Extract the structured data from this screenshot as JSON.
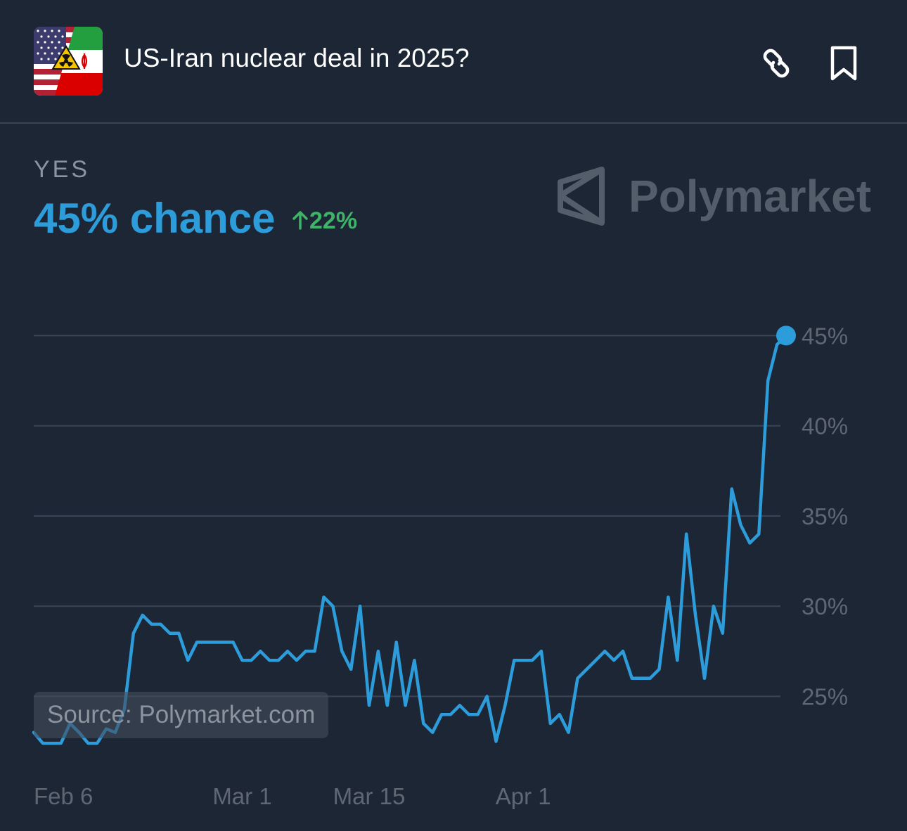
{
  "header": {
    "title": "US-Iran nuclear deal in 2025?",
    "icon": "us-iran-flag-radiation-icon",
    "actions": [
      "link-icon",
      "bookmark-icon"
    ]
  },
  "outcome": {
    "label": "YES",
    "chance": "45% chance",
    "change": "22%",
    "change_direction": "up"
  },
  "brand": "Polymarket",
  "source": "Source: Polymarket.com",
  "colors": {
    "background": "#1d2634",
    "line": "#2d9cdb",
    "positive_change": "#3db468",
    "grid": "#3a4556",
    "muted_text": "#8c949f"
  },
  "chart_data": {
    "type": "line",
    "series": [
      {
        "values": [
          {
            "x": "2025-02-06",
            "y": 23.0
          },
          {
            "x": "2025-02-07",
            "y": 22.4
          },
          {
            "x": "2025-02-08",
            "y": 22.4
          },
          {
            "x": "2025-02-09",
            "y": 22.4
          },
          {
            "x": "2025-02-10",
            "y": 23.5
          },
          {
            "x": "2025-02-11",
            "y": 23.0
          },
          {
            "x": "2025-02-12",
            "y": 22.4
          },
          {
            "x": "2025-02-13",
            "y": 22.4
          },
          {
            "x": "2025-02-14",
            "y": 23.2
          },
          {
            "x": "2025-02-15",
            "y": 23.0
          },
          {
            "x": "2025-02-16",
            "y": 24.3
          },
          {
            "x": "2025-02-17",
            "y": 28.5
          },
          {
            "x": "2025-02-18",
            "y": 29.5
          },
          {
            "x": "2025-02-19",
            "y": 29.0
          },
          {
            "x": "2025-02-20",
            "y": 29.0
          },
          {
            "x": "2025-02-21",
            "y": 28.5
          },
          {
            "x": "2025-02-22",
            "y": 28.5
          },
          {
            "x": "2025-02-23",
            "y": 27.0
          },
          {
            "x": "2025-02-24",
            "y": 28.0
          },
          {
            "x": "2025-02-25",
            "y": 28.0
          },
          {
            "x": "2025-02-26",
            "y": 28.0
          },
          {
            "x": "2025-02-27",
            "y": 28.0
          },
          {
            "x": "2025-02-28",
            "y": 28.0
          },
          {
            "x": "2025-03-01",
            "y": 27.0
          },
          {
            "x": "2025-03-02",
            "y": 27.0
          },
          {
            "x": "2025-03-03",
            "y": 27.5
          },
          {
            "x": "2025-03-04",
            "y": 27.0
          },
          {
            "x": "2025-03-05",
            "y": 27.0
          },
          {
            "x": "2025-03-06",
            "y": 27.5
          },
          {
            "x": "2025-03-07",
            "y": 27.0
          },
          {
            "x": "2025-03-08",
            "y": 27.5
          },
          {
            "x": "2025-03-09",
            "y": 27.5
          },
          {
            "x": "2025-03-10",
            "y": 30.5
          },
          {
            "x": "2025-03-11",
            "y": 30.0
          },
          {
            "x": "2025-03-12",
            "y": 27.5
          },
          {
            "x": "2025-03-13",
            "y": 26.5
          },
          {
            "x": "2025-03-14",
            "y": 30.0
          },
          {
            "x": "2025-03-15",
            "y": 24.5
          },
          {
            "x": "2025-03-16",
            "y": 27.5
          },
          {
            "x": "2025-03-17",
            "y": 24.5
          },
          {
            "x": "2025-03-18",
            "y": 28.0
          },
          {
            "x": "2025-03-19",
            "y": 24.5
          },
          {
            "x": "2025-03-20",
            "y": 27.0
          },
          {
            "x": "2025-03-21",
            "y": 23.5
          },
          {
            "x": "2025-03-22",
            "y": 23.0
          },
          {
            "x": "2025-03-23",
            "y": 24.0
          },
          {
            "x": "2025-03-24",
            "y": 24.0
          },
          {
            "x": "2025-03-25",
            "y": 24.5
          },
          {
            "x": "2025-03-26",
            "y": 24.0
          },
          {
            "x": "2025-03-27",
            "y": 24.0
          },
          {
            "x": "2025-03-28",
            "y": 25.0
          },
          {
            "x": "2025-03-29",
            "y": 22.5
          },
          {
            "x": "2025-03-30",
            "y": 24.5
          },
          {
            "x": "2025-03-31",
            "y": 27.0
          },
          {
            "x": "2025-04-01",
            "y": 27.0
          },
          {
            "x": "2025-04-02",
            "y": 27.0
          },
          {
            "x": "2025-04-03",
            "y": 27.5
          },
          {
            "x": "2025-04-04",
            "y": 23.5
          },
          {
            "x": "2025-04-05",
            "y": 24.0
          },
          {
            "x": "2025-04-06",
            "y": 23.0
          },
          {
            "x": "2025-04-07",
            "y": 26.0
          },
          {
            "x": "2025-04-08",
            "y": 26.5
          },
          {
            "x": "2025-04-09",
            "y": 27.0
          },
          {
            "x": "2025-04-10",
            "y": 27.5
          },
          {
            "x": "2025-04-11",
            "y": 27.0
          },
          {
            "x": "2025-04-12",
            "y": 27.5
          },
          {
            "x": "2025-04-13",
            "y": 26.0
          },
          {
            "x": "2025-04-14",
            "y": 26.0
          },
          {
            "x": "2025-04-15",
            "y": 26.0
          },
          {
            "x": "2025-04-16",
            "y": 26.5
          },
          {
            "x": "2025-04-17",
            "y": 30.5
          },
          {
            "x": "2025-04-18",
            "y": 27.0
          },
          {
            "x": "2025-04-19",
            "y": 34.0
          },
          {
            "x": "2025-04-20",
            "y": 29.5
          },
          {
            "x": "2025-04-21",
            "y": 26.0
          },
          {
            "x": "2025-04-22",
            "y": 30.0
          },
          {
            "x": "2025-04-23",
            "y": 28.5
          },
          {
            "x": "2025-04-24",
            "y": 36.5
          },
          {
            "x": "2025-04-25",
            "y": 34.5
          },
          {
            "x": "2025-04-26",
            "y": 33.5
          },
          {
            "x": "2025-04-27",
            "y": 34.0
          },
          {
            "x": "2025-04-28",
            "y": 42.5
          },
          {
            "x": "2025-04-29",
            "y": 44.5
          },
          {
            "x": "2025-04-30",
            "y": 45.0
          }
        ]
      }
    ],
    "x_tick_labels": [
      {
        "x": "2025-02-06",
        "label": "Feb 6"
      },
      {
        "x": "2025-03-01",
        "label": "Mar 1"
      },
      {
        "x": "2025-03-15",
        "label": "Mar 15"
      },
      {
        "x": "2025-04-01",
        "label": "Apr 1"
      }
    ],
    "y_ticks": [
      {
        "value": 25,
        "label": "25%"
      },
      {
        "value": 30,
        "label": "30%"
      },
      {
        "value": 35,
        "label": "35%"
      },
      {
        "value": 40,
        "label": "40%"
      },
      {
        "value": 45,
        "label": "45%"
      }
    ],
    "xlim": [
      "2025-02-06",
      "2025-04-30"
    ],
    "ylim": [
      21.2,
      47.0
    ],
    "grid": true,
    "y_axis_position": "right",
    "last_point_marker": true
  }
}
